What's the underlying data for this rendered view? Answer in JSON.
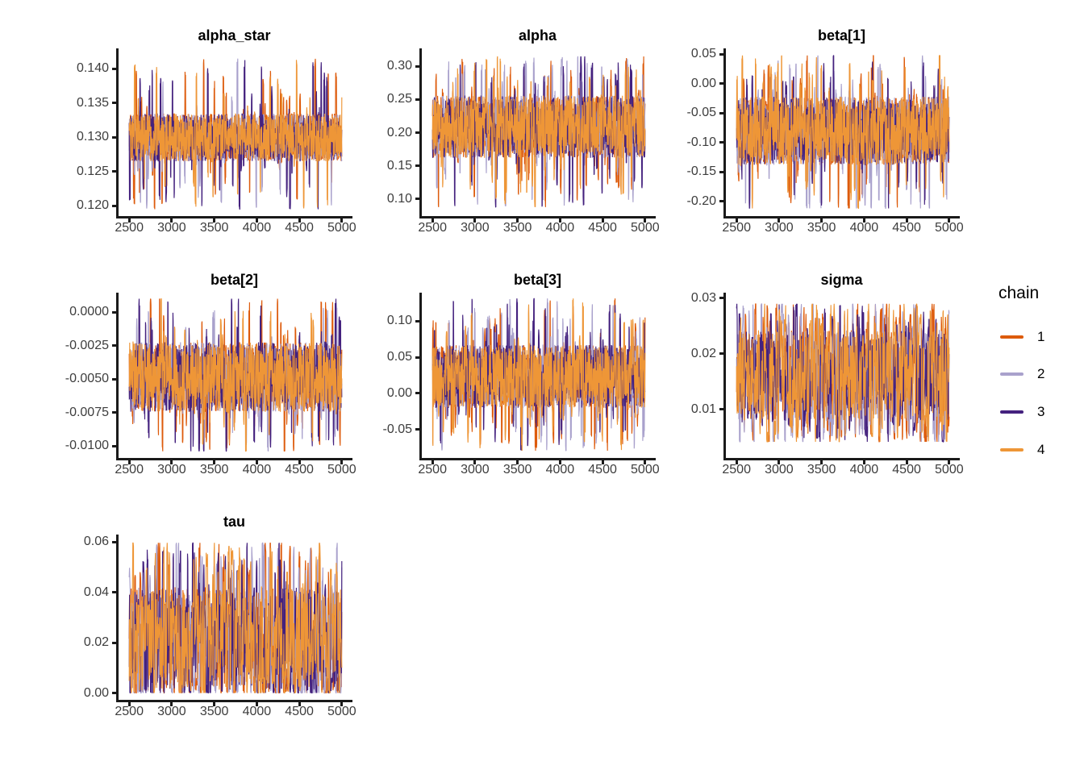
{
  "figure": {
    "background": "#FFFFFF",
    "axis_color": "#1A1A1A",
    "tick_label_color": "#3D3D3D",
    "panel_title_color": "#000000"
  },
  "legend": {
    "title": "chain",
    "position": "right",
    "entries": [
      {
        "label": "1",
        "color": "#DD5B0C"
      },
      {
        "label": "2",
        "color": "#A9A1CC"
      },
      {
        "label": "3",
        "color": "#44217E"
      },
      {
        "label": "4",
        "color": "#EE9637"
      }
    ]
  },
  "chart_data": {
    "type": "line",
    "subtype": "mcmc-trace-plot",
    "grid": "off",
    "x_axis": {
      "label": "",
      "ticks": [
        2500,
        3000,
        3500,
        4000,
        4500,
        5000
      ],
      "lim": [
        2375,
        5125
      ],
      "data_range": [
        2500,
        5000
      ]
    },
    "chains": [
      "1",
      "2",
      "3",
      "4"
    ],
    "panels": [
      {
        "title": "alpha_star",
        "y_ticks": [
          {
            "label": "0.140",
            "value": 0.14
          },
          {
            "label": "0.135",
            "value": 0.135
          },
          {
            "label": "0.130",
            "value": 0.13
          },
          {
            "label": "0.125",
            "value": 0.125
          },
          {
            "label": "0.120",
            "value": 0.12
          }
        ],
        "y_lim": [
          0.1185,
          0.143
        ],
        "core_band": [
          0.1265,
          0.1335
        ],
        "extremes": [
          0.1195,
          0.1415
        ],
        "noise": {
          "n": 900,
          "spike_p": 0.045
        }
      },
      {
        "title": "alpha",
        "y_ticks": [
          {
            "label": "0.30",
            "value": 0.3
          },
          {
            "label": "0.25",
            "value": 0.25
          },
          {
            "label": "0.20",
            "value": 0.2
          },
          {
            "label": "0.15",
            "value": 0.15
          },
          {
            "label": "0.10",
            "value": 0.1
          }
        ],
        "y_lim": [
          0.0745,
          0.327
        ],
        "core_band": [
          0.162,
          0.256
        ],
        "extremes": [
          0.088,
          0.315
        ],
        "noise": {
          "n": 900,
          "spike_p": 0.06
        }
      },
      {
        "title": "beta[1]",
        "y_ticks": [
          {
            "label": "0.05",
            "value": 0.05
          },
          {
            "label": "0.00",
            "value": 0.0
          },
          {
            "label": "-0.05",
            "value": -0.05
          },
          {
            "label": "-0.10",
            "value": -0.1
          },
          {
            "label": "-0.15",
            "value": -0.15
          },
          {
            "label": "-0.20",
            "value": -0.2
          }
        ],
        "y_lim": [
          -0.225,
          0.06
        ],
        "core_band": [
          -0.138,
          -0.022
        ],
        "extremes": [
          -0.212,
          0.048
        ],
        "noise": {
          "n": 900,
          "spike_p": 0.05
        }
      },
      {
        "title": "beta[2]",
        "y_ticks": [
          {
            "label": "0.0000",
            "value": 0.0
          },
          {
            "label": "-0.0025",
            "value": -0.0025
          },
          {
            "label": "-0.0050",
            "value": -0.005
          },
          {
            "label": "-0.0075",
            "value": -0.0075
          },
          {
            "label": "-0.0100",
            "value": -0.01
          }
        ],
        "y_lim": [
          -0.0109,
          0.00145
        ],
        "core_band": [
          -0.00745,
          -0.00225
        ],
        "extremes": [
          -0.0104,
          0.001
        ],
        "noise": {
          "n": 900,
          "spike_p": 0.05
        }
      },
      {
        "title": "beta[3]",
        "y_ticks": [
          {
            "label": "0.10",
            "value": 0.1
          },
          {
            "label": "0.05",
            "value": 0.05
          },
          {
            "label": "0.00",
            "value": 0.0
          },
          {
            "label": "-0.05",
            "value": -0.05
          }
        ],
        "y_lim": [
          -0.089,
          0.139
        ],
        "core_band": [
          -0.02,
          0.067
        ],
        "extremes": [
          -0.079,
          0.131
        ],
        "noise": {
          "n": 900,
          "spike_p": 0.06
        }
      },
      {
        "title": "sigma",
        "y_ticks": [
          {
            "label": "0.03",
            "value": 0.03
          },
          {
            "label": "0.02",
            "value": 0.02
          },
          {
            "label": "0.01",
            "value": 0.01
          }
        ],
        "y_lim": [
          0.0013,
          0.031
        ],
        "core_band": [
          0.0078,
          0.0242
        ],
        "extremes": [
          0.0042,
          0.029
        ],
        "noise": {
          "n": 650,
          "spike_p": 0.12
        }
      },
      {
        "title": "tau",
        "y_ticks": [
          {
            "label": "0.06",
            "value": 0.06
          },
          {
            "label": "0.04",
            "value": 0.04
          },
          {
            "label": "0.02",
            "value": 0.02
          },
          {
            "label": "0.00",
            "value": 0.0
          }
        ],
        "y_lim": [
          -0.0026,
          0.0629
        ],
        "core_band": [
          0.0012,
          0.042
        ],
        "extremes": [
          0.0001,
          0.0596
        ],
        "noise": {
          "n": 650,
          "spike_p": 0.13
        }
      }
    ]
  }
}
